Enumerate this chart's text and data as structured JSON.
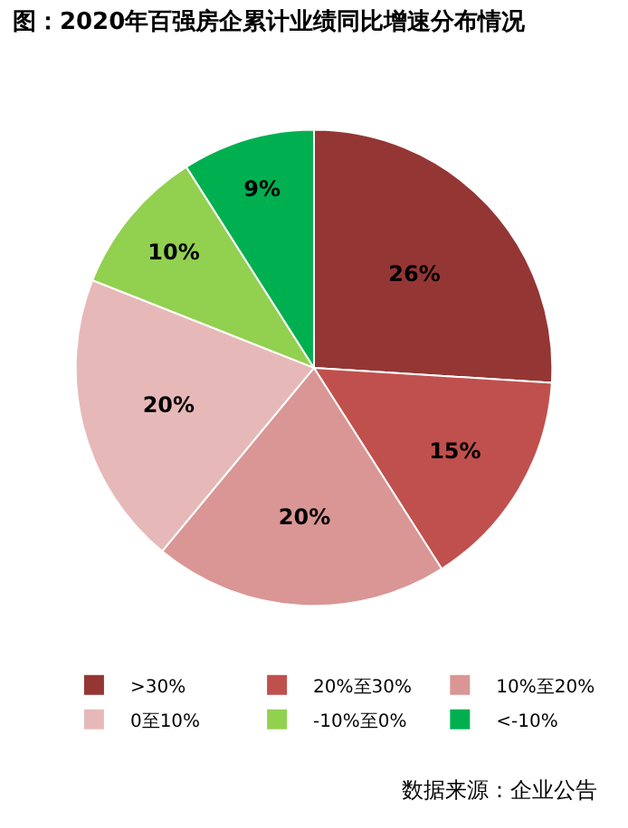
{
  "chart_data": {
    "type": "pie",
    "title": "图：2020年百强房企累计业绩同比增速分布情况",
    "categories": [
      ">30%",
      "20%至30%",
      "10%至20%",
      "0至10%",
      "-10%至0%",
      "<-10%"
    ],
    "values": [
      26,
      15,
      20,
      20,
      10,
      9
    ],
    "colors": [
      "#943634",
      "#c0504d",
      "#d99694",
      "#e6b9b8",
      "#92d050",
      "#00b050"
    ],
    "value_labels": [
      "26%",
      "15%",
      "20%",
      "20%",
      "10%",
      "9%"
    ],
    "legend": "bottom",
    "annotations": [
      "数据来源：企业公告"
    ]
  }
}
